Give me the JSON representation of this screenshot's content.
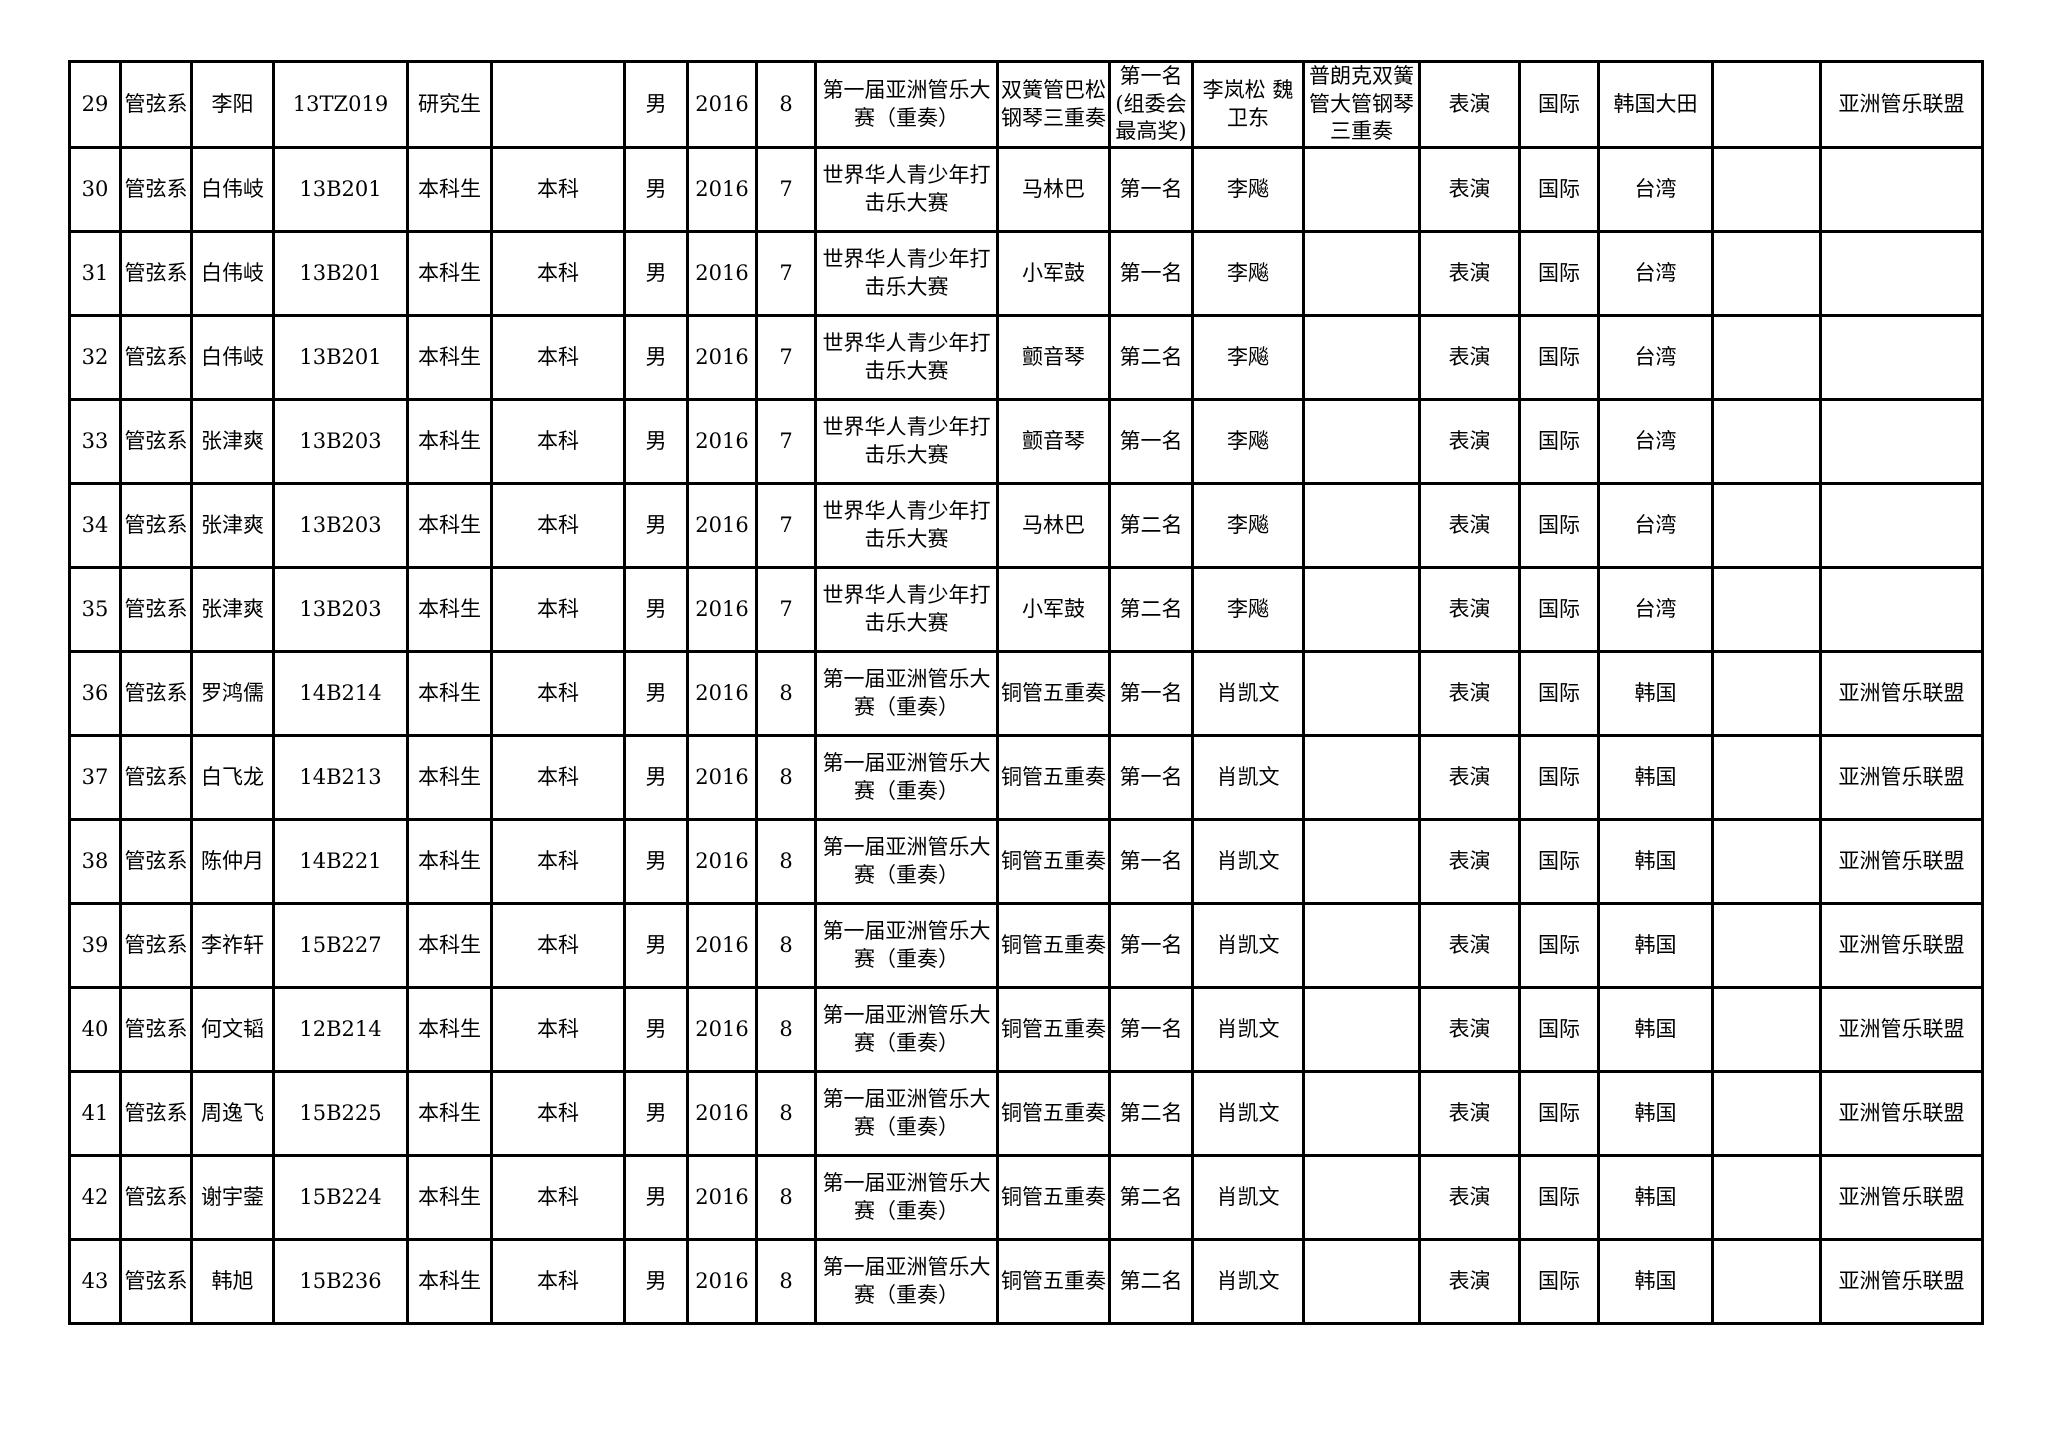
{
  "document": {
    "type": "award-list-table-page",
    "visible_row_range": "29-43"
  },
  "table": {
    "fields": [
      "no",
      "dept",
      "name",
      "student_id",
      "student_type",
      "level",
      "gender",
      "year",
      "month",
      "competition",
      "item",
      "prize",
      "teacher",
      "note",
      "category",
      "scope",
      "location",
      "blank",
      "organization"
    ],
    "rows": [
      {
        "no": "29",
        "dept": "管弦系",
        "name": "李阳",
        "student_id": "13TZ019",
        "student_type": "研究生",
        "level": "",
        "gender": "男",
        "year": "2016",
        "month": "8",
        "competition": "第一届亚洲管乐大赛（重奏）",
        "item": "双簧管巴松钢琴三重奏",
        "prize": "第一名(组委会最高奖)",
        "teacher": "李岚松 魏卫东",
        "note": "普朗克双簧管大管钢琴三重奏",
        "category": "表演",
        "scope": "国际",
        "location": "韩国大田",
        "blank": "",
        "organization": "亚洲管乐联盟"
      },
      {
        "no": "30",
        "dept": "管弦系",
        "name": "白伟岐",
        "student_id": "13B201",
        "student_type": "本科生",
        "level": "本科",
        "gender": "男",
        "year": "2016",
        "month": "7",
        "competition": "世界华人青少年打击乐大赛",
        "item": "马林巴",
        "prize": "第一名",
        "teacher": "李飚",
        "note": "",
        "category": "表演",
        "scope": "国际",
        "location": "台湾",
        "blank": "",
        "organization": ""
      },
      {
        "no": "31",
        "dept": "管弦系",
        "name": "白伟岐",
        "student_id": "13B201",
        "student_type": "本科生",
        "level": "本科",
        "gender": "男",
        "year": "2016",
        "month": "7",
        "competition": "世界华人青少年打击乐大赛",
        "item": "小军鼓",
        "prize": "第一名",
        "teacher": "李飚",
        "note": "",
        "category": "表演",
        "scope": "国际",
        "location": "台湾",
        "blank": "",
        "organization": ""
      },
      {
        "no": "32",
        "dept": "管弦系",
        "name": "白伟岐",
        "student_id": "13B201",
        "student_type": "本科生",
        "level": "本科",
        "gender": "男",
        "year": "2016",
        "month": "7",
        "competition": "世界华人青少年打击乐大赛",
        "item": "颤音琴",
        "prize": "第二名",
        "teacher": "李飚",
        "note": "",
        "category": "表演",
        "scope": "国际",
        "location": "台湾",
        "blank": "",
        "organization": ""
      },
      {
        "no": "33",
        "dept": "管弦系",
        "name": "张津爽",
        "student_id": "13B203",
        "student_type": "本科生",
        "level": "本科",
        "gender": "男",
        "year": "2016",
        "month": "7",
        "competition": "世界华人青少年打击乐大赛",
        "item": "颤音琴",
        "prize": "第一名",
        "teacher": "李飚",
        "note": "",
        "category": "表演",
        "scope": "国际",
        "location": "台湾",
        "blank": "",
        "organization": ""
      },
      {
        "no": "34",
        "dept": "管弦系",
        "name": "张津爽",
        "student_id": "13B203",
        "student_type": "本科生",
        "level": "本科",
        "gender": "男",
        "year": "2016",
        "month": "7",
        "competition": "世界华人青少年打击乐大赛",
        "item": "马林巴",
        "prize": "第二名",
        "teacher": "李飚",
        "note": "",
        "category": "表演",
        "scope": "国际",
        "location": "台湾",
        "blank": "",
        "organization": ""
      },
      {
        "no": "35",
        "dept": "管弦系",
        "name": "张津爽",
        "student_id": "13B203",
        "student_type": "本科生",
        "level": "本科",
        "gender": "男",
        "year": "2016",
        "month": "7",
        "competition": "世界华人青少年打击乐大赛",
        "item": "小军鼓",
        "prize": "第二名",
        "teacher": "李飚",
        "note": "",
        "category": "表演",
        "scope": "国际",
        "location": "台湾",
        "blank": "",
        "organization": ""
      },
      {
        "no": "36",
        "dept": "管弦系",
        "name": "罗鸿儒",
        "student_id": "14B214",
        "student_type": "本科生",
        "level": "本科",
        "gender": "男",
        "year": "2016",
        "month": "8",
        "competition": "第一届亚洲管乐大赛（重奏）",
        "item": "铜管五重奏",
        "prize": "第一名",
        "teacher": "肖凯文",
        "note": "",
        "category": "表演",
        "scope": "国际",
        "location": "韩国",
        "blank": "",
        "organization": "亚洲管乐联盟"
      },
      {
        "no": "37",
        "dept": "管弦系",
        "name": "白飞龙",
        "student_id": "14B213",
        "student_type": "本科生",
        "level": "本科",
        "gender": "男",
        "year": "2016",
        "month": "8",
        "competition": "第一届亚洲管乐大赛（重奏）",
        "item": "铜管五重奏",
        "prize": "第一名",
        "teacher": "肖凯文",
        "note": "",
        "category": "表演",
        "scope": "国际",
        "location": "韩国",
        "blank": "",
        "organization": "亚洲管乐联盟"
      },
      {
        "no": "38",
        "dept": "管弦系",
        "name": "陈仲月",
        "student_id": "14B221",
        "student_type": "本科生",
        "level": "本科",
        "gender": "男",
        "year": "2016",
        "month": "8",
        "competition": "第一届亚洲管乐大赛（重奏）",
        "item": "铜管五重奏",
        "prize": "第一名",
        "teacher": "肖凯文",
        "note": "",
        "category": "表演",
        "scope": "国际",
        "location": "韩国",
        "blank": "",
        "organization": "亚洲管乐联盟"
      },
      {
        "no": "39",
        "dept": "管弦系",
        "name": "李祚轩",
        "student_id": "15B227",
        "student_type": "本科生",
        "level": "本科",
        "gender": "男",
        "year": "2016",
        "month": "8",
        "competition": "第一届亚洲管乐大赛（重奏）",
        "item": "铜管五重奏",
        "prize": "第一名",
        "teacher": "肖凯文",
        "note": "",
        "category": "表演",
        "scope": "国际",
        "location": "韩国",
        "blank": "",
        "organization": "亚洲管乐联盟"
      },
      {
        "no": "40",
        "dept": "管弦系",
        "name": "何文韬",
        "student_id": "12B214",
        "student_type": "本科生",
        "level": "本科",
        "gender": "男",
        "year": "2016",
        "month": "8",
        "competition": "第一届亚洲管乐大赛（重奏）",
        "item": "铜管五重奏",
        "prize": "第一名",
        "teacher": "肖凯文",
        "note": "",
        "category": "表演",
        "scope": "国际",
        "location": "韩国",
        "blank": "",
        "organization": "亚洲管乐联盟"
      },
      {
        "no": "41",
        "dept": "管弦系",
        "name": "周逸飞",
        "student_id": "15B225",
        "student_type": "本科生",
        "level": "本科",
        "gender": "男",
        "year": "2016",
        "month": "8",
        "competition": "第一届亚洲管乐大赛（重奏）",
        "item": "铜管五重奏",
        "prize": "第二名",
        "teacher": "肖凯文",
        "note": "",
        "category": "表演",
        "scope": "国际",
        "location": "韩国",
        "blank": "",
        "organization": "亚洲管乐联盟"
      },
      {
        "no": "42",
        "dept": "管弦系",
        "name": "谢宇蓥",
        "student_id": "15B224",
        "student_type": "本科生",
        "level": "本科",
        "gender": "男",
        "year": "2016",
        "month": "8",
        "competition": "第一届亚洲管乐大赛（重奏）",
        "item": "铜管五重奏",
        "prize": "第二名",
        "teacher": "肖凯文",
        "note": "",
        "category": "表演",
        "scope": "国际",
        "location": "韩国",
        "blank": "",
        "organization": "亚洲管乐联盟"
      },
      {
        "no": "43",
        "dept": "管弦系",
        "name": "韩旭",
        "student_id": "15B236",
        "student_type": "本科生",
        "level": "本科",
        "gender": "男",
        "year": "2016",
        "month": "8",
        "competition": "第一届亚洲管乐大赛（重奏）",
        "item": "铜管五重奏",
        "prize": "第二名",
        "teacher": "肖凯文",
        "note": "",
        "category": "表演",
        "scope": "国际",
        "location": "韩国",
        "blank": "",
        "organization": "亚洲管乐联盟"
      }
    ]
  }
}
